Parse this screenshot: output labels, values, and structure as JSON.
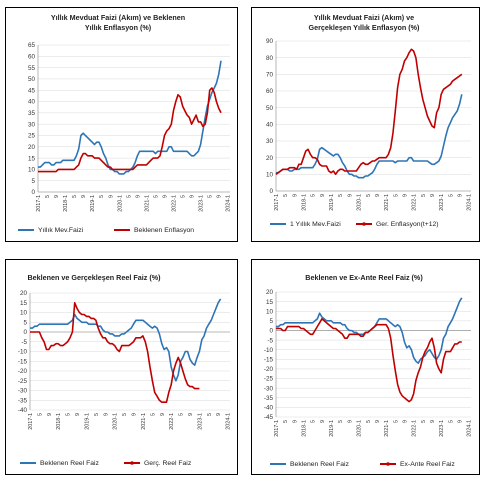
{
  "chart_data": [
    {
      "type": "line",
      "title": [
        "Yıllık Mevduat Faizi (Akım) ve Beklenen",
        "Yıllık Enflasyon (%)"
      ],
      "xlabel": "",
      "ylabel": "",
      "ylim": [
        0,
        65
      ],
      "yticks": [
        0,
        5,
        10,
        15,
        20,
        25,
        30,
        35,
        40,
        45,
        50,
        55,
        60,
        65
      ],
      "x_tick_labels": [
        "2017-1",
        "5",
        "9",
        "2018-1",
        "5",
        "9",
        "2019-1",
        "5",
        "9",
        "2020-1",
        "5",
        "9",
        "2021-1",
        "5",
        "9",
        "2022-1",
        "5",
        "9",
        "2023-1",
        "5",
        "9",
        "2024-1"
      ],
      "x_start": "2017-1",
      "series": [
        {
          "name": "Yıllık Mev.Faizi",
          "color": "#2e75b6",
          "values": [
            11,
            11,
            12,
            13,
            13,
            13,
            12,
            12,
            13,
            13,
            13,
            14,
            14,
            14,
            14,
            14,
            14,
            16,
            19,
            25,
            26,
            25,
            24,
            23,
            22,
            21,
            22,
            22,
            20,
            17,
            15,
            12,
            10,
            10,
            9,
            9,
            8,
            8,
            8,
            9,
            9,
            10,
            11,
            13,
            16,
            18,
            18,
            18,
            18,
            18,
            18,
            18,
            17,
            18,
            18,
            18,
            18,
            18,
            20,
            20,
            18,
            18,
            18,
            18,
            18,
            18,
            18,
            17,
            16,
            16,
            17,
            18,
            21,
            27,
            33,
            38,
            41,
            44,
            46,
            48,
            52,
            58
          ]
        },
        {
          "name": "Beklenen Enflasyon",
          "color": "#c00000",
          "values": [
            9,
            9,
            9,
            9,
            9,
            9,
            9,
            9,
            9,
            10,
            10,
            10,
            10,
            10,
            10,
            10,
            10,
            11,
            12,
            15,
            17,
            17,
            16,
            16,
            16,
            15,
            15,
            15,
            14,
            13,
            12,
            11,
            11,
            10,
            10,
            10,
            10,
            10,
            10,
            10,
            10,
            10,
            10,
            11,
            12,
            12,
            12,
            12,
            12,
            13,
            14,
            15,
            15,
            15,
            16,
            20,
            25,
            27,
            28,
            30,
            36,
            40,
            43,
            42,
            38,
            36,
            34,
            33,
            30,
            32,
            34,
            31,
            31,
            29,
            30,
            35,
            45,
            46,
            44,
            40,
            37,
            35
          ]
        }
      ],
      "legend_position": "bottom"
    },
    {
      "type": "line",
      "title": [
        "Yıllık Mevduat Faizi (Akım) ve",
        "Gerçekleşen Yıllık Enflasyon (%)"
      ],
      "xlabel": "",
      "ylabel": "",
      "ylim": [
        0,
        90
      ],
      "yticks": [
        0,
        10,
        20,
        30,
        40,
        50,
        60,
        70,
        80,
        90
      ],
      "x_tick_labels": [
        "2017-1",
        "5",
        "9",
        "2018-1",
        "5",
        "9",
        "2019-1",
        "5",
        "9",
        "2020-1",
        "5",
        "9",
        "2021-1",
        "5",
        "9",
        "2022-1",
        "5",
        "9",
        "2023-1",
        "5",
        "9",
        "2024-1"
      ],
      "x_start": "2017-1",
      "series": [
        {
          "name": "1 Yıllık Mev.Faizi",
          "color": "#2e75b6",
          "values": [
            11,
            11,
            12,
            13,
            13,
            13,
            12,
            12,
            13,
            13,
            13,
            14,
            14,
            14,
            14,
            14,
            14,
            16,
            19,
            25,
            26,
            25,
            24,
            23,
            22,
            21,
            22,
            22,
            20,
            17,
            15,
            12,
            10,
            10,
            9,
            9,
            8,
            8,
            8,
            9,
            9,
            10,
            11,
            13,
            16,
            18,
            18,
            18,
            18,
            18,
            18,
            18,
            17,
            18,
            18,
            18,
            18,
            18,
            20,
            20,
            18,
            18,
            18,
            18,
            18,
            18,
            18,
            17,
            16,
            16,
            17,
            18,
            21,
            27,
            33,
            38,
            41,
            44,
            46,
            48,
            52,
            58
          ]
        },
        {
          "name": "Ger. Enflasyon(t+12)",
          "color": "#c00000",
          "values": [
            10,
            11,
            12,
            13,
            13,
            13,
            14,
            14,
            14,
            13,
            16,
            16,
            20,
            24,
            25,
            22,
            20,
            20,
            19,
            16,
            15,
            15,
            15,
            12,
            11,
            12,
            10,
            12,
            13,
            13,
            12,
            12,
            12,
            12,
            12,
            12,
            14,
            16,
            17,
            16,
            16,
            17,
            18,
            18,
            19,
            20,
            20,
            20,
            20,
            22,
            26,
            35,
            48,
            62,
            70,
            73,
            78,
            80,
            83,
            85,
            84,
            80,
            70,
            62,
            55,
            50,
            45,
            42,
            39,
            38,
            47,
            50,
            58,
            61,
            62,
            63,
            64,
            66,
            67,
            68,
            69,
            70
          ]
        }
      ],
      "legend_position": "bottom"
    },
    {
      "type": "line",
      "title": [
        "Beklenen ve Gerçekleşen Reel Faiz (%)"
      ],
      "xlabel": "",
      "ylabel": "",
      "ylim": [
        -40,
        20
      ],
      "yticks": [
        -40,
        -35,
        -30,
        -25,
        -20,
        -15,
        -10,
        -5,
        0,
        5,
        10,
        15,
        20
      ],
      "x_tick_labels": [
        "2017-1",
        "5",
        "9",
        "2018-1",
        "5",
        "9",
        "2019-1",
        "5",
        "9",
        "2020-1",
        "5",
        "9",
        "2021-1",
        "5",
        "9",
        "2022-1",
        "5",
        "9",
        "2023-1",
        "5",
        "9",
        "2024-1"
      ],
      "x_start": "2017-1",
      "series": [
        {
          "name": "Beklenen Reel Faiz",
          "color": "#2e75b6",
          "values": [
            2,
            2,
            3,
            3,
            4,
            4,
            4,
            4,
            4,
            4,
            4,
            4,
            4,
            4,
            4,
            4,
            4,
            5,
            6,
            9,
            7,
            6,
            5,
            5,
            5,
            4,
            4,
            4,
            4,
            3,
            3,
            1,
            0,
            0,
            -1,
            -1,
            -2,
            -2,
            -2,
            -1,
            -1,
            0,
            1,
            2,
            4,
            6,
            6,
            6,
            6,
            5,
            4,
            3,
            2,
            3,
            2,
            -1,
            -6,
            -9,
            -8,
            -10,
            -18,
            -22,
            -25,
            -22,
            -15,
            -13,
            -10,
            -10,
            -14,
            -16,
            -17,
            -13,
            -10,
            -4,
            -2,
            2,
            4,
            6,
            9,
            12,
            15,
            17
          ]
        },
        {
          "name": "Gerç. Reel Faiz",
          "color": "#c00000",
          "values": [
            0,
            0,
            0,
            0,
            0,
            -3,
            -5,
            -9,
            -9,
            -7,
            -7,
            -6,
            -6,
            -7,
            -7,
            -6,
            -5,
            -3,
            0,
            15,
            12,
            10,
            9,
            9,
            8,
            8,
            7,
            7,
            6,
            2,
            -1,
            -3,
            -3,
            -5,
            -6,
            -6,
            -7,
            -9,
            -10,
            -7,
            -7,
            -7,
            -7,
            -6,
            -5,
            -3,
            -3,
            -3,
            -2,
            -5,
            -10,
            -18,
            -25,
            -31,
            -33,
            -35,
            -36,
            -36,
            -36,
            -31,
            -27,
            -20,
            -16,
            -13,
            -16,
            -20,
            -24,
            -27,
            -28,
            -28,
            -29,
            -29,
            -29
          ]
        }
      ],
      "legend_position": "bottom"
    },
    {
      "type": "line",
      "title": [
        "Beklenen ve Ex-Ante Reel Faiz (%)"
      ],
      "xlabel": "",
      "ylabel": "",
      "ylim": [
        -45,
        20
      ],
      "yticks": [
        -45,
        -40,
        -35,
        -30,
        -25,
        -20,
        -15,
        -10,
        -5,
        0,
        5,
        10,
        15,
        20
      ],
      "x_tick_labels": [
        "2017-1",
        "5",
        "9",
        "2018-1",
        "5",
        "9",
        "2019-1",
        "5",
        "9",
        "2020-1",
        "5",
        "9",
        "2021-1",
        "5",
        "9",
        "2022-1",
        "5",
        "9",
        "2023-1",
        "5",
        "9",
        "2024-1"
      ],
      "x_start": "2017-1",
      "series": [
        {
          "name": "Beklenen Reel Faiz",
          "color": "#2e75b6",
          "values": [
            2,
            2,
            3,
            3,
            4,
            4,
            4,
            4,
            4,
            4,
            4,
            4,
            4,
            4,
            4,
            4,
            4,
            5,
            6,
            9,
            7,
            6,
            5,
            5,
            5,
            4,
            4,
            4,
            4,
            3,
            3,
            1,
            0,
            0,
            -1,
            -1,
            -2,
            -2,
            -2,
            -1,
            -1,
            0,
            1,
            2,
            4,
            6,
            6,
            6,
            6,
            5,
            4,
            3,
            2,
            3,
            2,
            -1,
            -6,
            -9,
            -8,
            -10,
            -14,
            -16,
            -17,
            -15,
            -14,
            -13,
            -11,
            -10,
            -12,
            -14,
            -15,
            -13,
            -10,
            -4,
            -2,
            2,
            4,
            6,
            9,
            12,
            15,
            17
          ]
        },
        {
          "name": "Ex-Ante Reel Faiz",
          "color": "#c00000",
          "values": [
            1,
            1,
            1,
            0,
            0,
            2,
            2,
            2,
            2,
            2,
            2,
            1,
            1,
            0,
            -1,
            -2,
            -2,
            0,
            2,
            4,
            6,
            5,
            4,
            3,
            2,
            1,
            1,
            0,
            -1,
            -2,
            -4,
            -4,
            -2,
            -2,
            -2,
            -2,
            -2,
            -3,
            -3,
            -1,
            -1,
            0,
            1,
            2,
            3,
            3,
            3,
            3,
            3,
            1,
            -4,
            -13,
            -21,
            -28,
            -32,
            -34,
            -35,
            -36,
            -37,
            -36,
            -33,
            -26,
            -22,
            -19,
            -14,
            -11,
            -9,
            -6,
            -4,
            -9,
            -17,
            -20,
            -22,
            -15,
            -11,
            -11,
            -11,
            -9,
            -7,
            -7,
            -6,
            -6
          ]
        }
      ],
      "legend_position": "bottom"
    }
  ]
}
